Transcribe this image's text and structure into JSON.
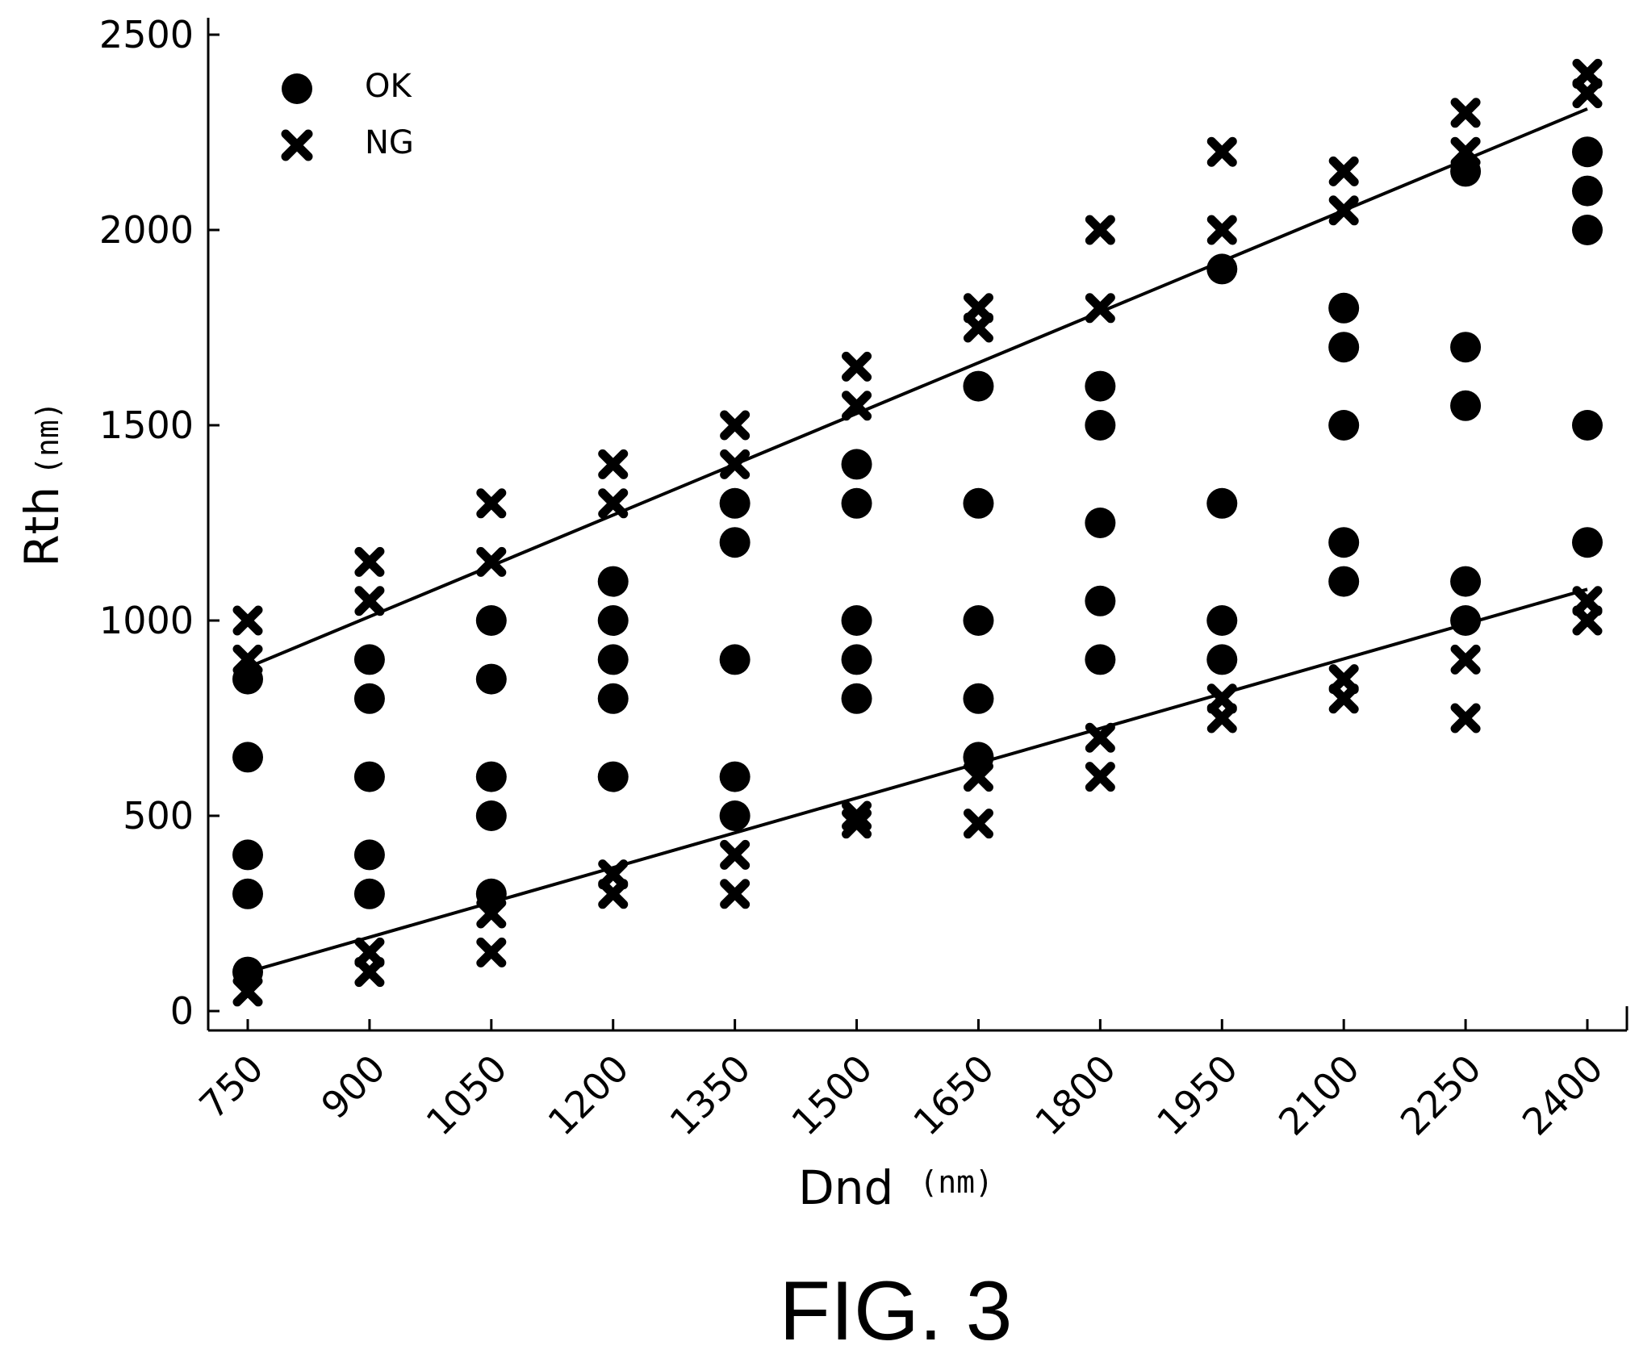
{
  "chart_data": {
    "type": "scatter",
    "xlabel": "Dnd",
    "xlabel_unit": "(nm)",
    "ylabel": "Rth",
    "ylabel_unit": "(nm)",
    "x_ticks": [
      750,
      900,
      1050,
      1200,
      1350,
      1500,
      1650,
      1800,
      1950,
      2100,
      2250,
      2400
    ],
    "y_ticks": [
      0,
      500,
      1000,
      1500,
      2000,
      2500
    ],
    "xlim": [
      700,
      2450
    ],
    "ylim": [
      -50,
      2550
    ],
    "grid": false,
    "legend_position": "top-left",
    "caption": "FIG. 3",
    "series": [
      {
        "name": "OK",
        "marker": "circle",
        "points": [
          [
            750,
            100
          ],
          [
            750,
            300
          ],
          [
            750,
            400
          ],
          [
            750,
            650
          ],
          [
            750,
            850
          ],
          [
            900,
            300
          ],
          [
            900,
            400
          ],
          [
            900,
            600
          ],
          [
            900,
            800
          ],
          [
            900,
            900
          ],
          [
            1050,
            300
          ],
          [
            1050,
            500
          ],
          [
            1050,
            600
          ],
          [
            1050,
            850
          ],
          [
            1050,
            1000
          ],
          [
            1200,
            600
          ],
          [
            1200,
            800
          ],
          [
            1200,
            900
          ],
          [
            1200,
            1000
          ],
          [
            1200,
            1100
          ],
          [
            1350,
            500
          ],
          [
            1350,
            600
          ],
          [
            1350,
            900
          ],
          [
            1350,
            1200
          ],
          [
            1350,
            1300
          ],
          [
            1500,
            800
          ],
          [
            1500,
            900
          ],
          [
            1500,
            1000
          ],
          [
            1500,
            1300
          ],
          [
            1500,
            1400
          ],
          [
            1650,
            650
          ],
          [
            1650,
            800
          ],
          [
            1650,
            1000
          ],
          [
            1650,
            1300
          ],
          [
            1650,
            1600
          ],
          [
            1800,
            900
          ],
          [
            1800,
            1050
          ],
          [
            1800,
            1250
          ],
          [
            1800,
            1500
          ],
          [
            1800,
            1600
          ],
          [
            1950,
            900
          ],
          [
            1950,
            1000
          ],
          [
            1950,
            1300
          ],
          [
            1950,
            1900
          ],
          [
            2100,
            1100
          ],
          [
            2100,
            1200
          ],
          [
            2100,
            1500
          ],
          [
            2100,
            1700
          ],
          [
            2100,
            1800
          ],
          [
            2250,
            1000
          ],
          [
            2250,
            1100
          ],
          [
            2250,
            1550
          ],
          [
            2250,
            1700
          ],
          [
            2250,
            2150
          ],
          [
            2400,
            1200
          ],
          [
            2400,
            1500
          ],
          [
            2400,
            2000
          ],
          [
            2400,
            2100
          ],
          [
            2400,
            2200
          ]
        ]
      },
      {
        "name": "NG",
        "marker": "x",
        "points": [
          [
            750,
            50
          ],
          [
            750,
            900
          ],
          [
            750,
            1000
          ],
          [
            900,
            100
          ],
          [
            900,
            150
          ],
          [
            900,
            1050
          ],
          [
            900,
            1150
          ],
          [
            1050,
            150
          ],
          [
            1050,
            250
          ],
          [
            1050,
            1150
          ],
          [
            1050,
            1300
          ],
          [
            1200,
            300
          ],
          [
            1200,
            350
          ],
          [
            1200,
            1300
          ],
          [
            1200,
            1400
          ],
          [
            1350,
            300
          ],
          [
            1350,
            400
          ],
          [
            1350,
            1400
          ],
          [
            1350,
            1500
          ],
          [
            1500,
            480
          ],
          [
            1500,
            500
          ],
          [
            1500,
            1550
          ],
          [
            1500,
            1650
          ],
          [
            1650,
            480
          ],
          [
            1650,
            600
          ],
          [
            1650,
            1750
          ],
          [
            1650,
            1800
          ],
          [
            1800,
            600
          ],
          [
            1800,
            700
          ],
          [
            1800,
            1800
          ],
          [
            1800,
            2000
          ],
          [
            1950,
            750
          ],
          [
            1950,
            800
          ],
          [
            1950,
            2000
          ],
          [
            1950,
            2200
          ],
          [
            2100,
            800
          ],
          [
            2100,
            850
          ],
          [
            2100,
            2050
          ],
          [
            2100,
            2150
          ],
          [
            2250,
            750
          ],
          [
            2250,
            900
          ],
          [
            2250,
            2200
          ],
          [
            2250,
            2300
          ],
          [
            2400,
            1000
          ],
          [
            2400,
            1050
          ],
          [
            2400,
            2350
          ],
          [
            2400,
            2400
          ]
        ]
      }
    ],
    "lines": [
      {
        "from": [
          750,
          880
        ],
        "to": [
          2400,
          2310
        ]
      },
      {
        "from": [
          750,
          100
        ],
        "to": [
          2400,
          1080
        ]
      }
    ]
  }
}
